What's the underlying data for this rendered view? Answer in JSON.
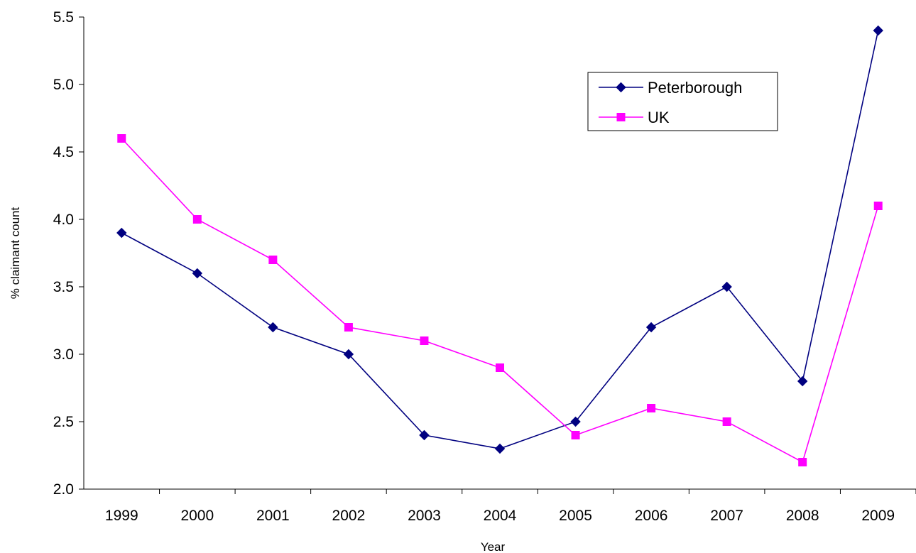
{
  "chart_data": {
    "type": "line",
    "title": "",
    "xlabel": "Year",
    "ylabel": "% claimant count",
    "categories": [
      "1999",
      "2000",
      "2001",
      "2002",
      "2003",
      "2004",
      "2005",
      "2006",
      "2007",
      "2008",
      "2009"
    ],
    "ylim": [
      2.0,
      5.5
    ],
    "yticks": [
      "2.0",
      "2.5",
      "3.0",
      "3.5",
      "4.0",
      "4.5",
      "5.0",
      "5.5"
    ],
    "grid": false,
    "legend_position": "top-right",
    "series": [
      {
        "name": "Peterborough",
        "color": "#000080",
        "marker": "diamond",
        "values": [
          3.9,
          3.6,
          3.2,
          3.0,
          2.4,
          2.3,
          2.5,
          3.2,
          3.5,
          2.8,
          5.4
        ]
      },
      {
        "name": "UK",
        "color": "#FF00FF",
        "marker": "square",
        "values": [
          4.6,
          4.0,
          3.7,
          3.2,
          3.1,
          2.9,
          2.4,
          2.6,
          2.5,
          2.2,
          4.1
        ]
      }
    ]
  }
}
